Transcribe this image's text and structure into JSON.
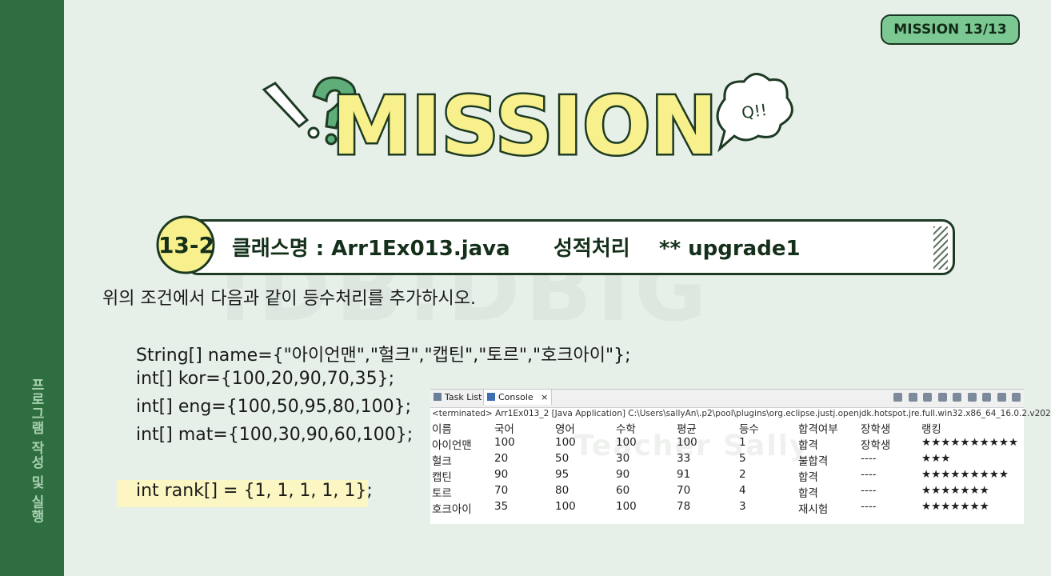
{
  "badge": "MISSION 13/13",
  "mission_title": "MISSION",
  "bubble_text": "Q!!",
  "watermark": ":DB:DBIG",
  "sidebar_label": "프로그램 작성 및 실행",
  "task": {
    "number": "13-2",
    "title": "클래스명 : Arr1Ex013.java      성적처리    ** upgrade1"
  },
  "instruction": "위의 조건에서 다음과 같이 등수처리를 추가하시오.",
  "code_lines": [
    "String[] name={\"아이언맨\",\"헐크\",\"캡틴\",\"토르\",\"호크아이\"};",
    "int[] kor={100,20,90,70,35};",
    "int[] eng={100,50,95,80,100};",
    "int[] mat={100,30,90,60,100};",
    "int rank[] = {1, 1, 1, 1, 1};"
  ],
  "console": {
    "tabs": [
      "Task List",
      "Console"
    ],
    "status": "<terminated> Arr1Ex013_2 [Java Application] C:\\Users\\sallyAn\\.p2\\pool\\plugins\\org.eclipse.justj.openjdk.hotspot.jre.full.win32.x86_64_16.0.2.v202",
    "watermark": "Teacher Sally",
    "headers": [
      "이름",
      "국어",
      "영어",
      "수학",
      "평균",
      "등수",
      "합격여부",
      "장학생",
      "랭킹"
    ],
    "rows": [
      [
        "아이언맨",
        "100",
        "100",
        "100",
        "100",
        "1",
        "합격",
        "장학생",
        "★★★★★★★★★★"
      ],
      [
        "헐크",
        "20",
        "50",
        "30",
        "33",
        "5",
        "불합격",
        "----",
        "★★★"
      ],
      [
        "캡틴",
        "90",
        "95",
        "90",
        "91",
        "2",
        "합격",
        "----",
        "★★★★★★★★★"
      ],
      [
        "토르",
        "70",
        "80",
        "60",
        "70",
        "4",
        "합격",
        "----",
        "★★★★★★★"
      ],
      [
        "호크아이",
        "35",
        "100",
        "100",
        "78",
        "3",
        "재시험",
        "----",
        "★★★★★★★"
      ]
    ]
  },
  "colors": {
    "background": "#e7efe9",
    "sidebar": "#2f6e3f",
    "accent_green": "#7cc893",
    "mission_yellow": "#f7f08c",
    "highlight": "#fbf6c2"
  }
}
